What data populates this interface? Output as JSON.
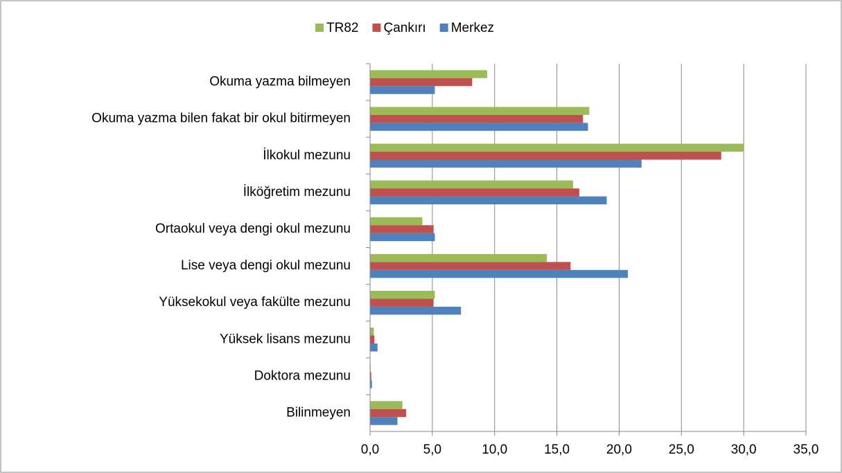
{
  "chart_data": {
    "type": "bar",
    "orientation": "horizontal",
    "categories": [
      "Okuma yazma bilmeyen",
      "Okuma yazma bilen fakat bir okul bitirmeyen",
      "İlkokul mezunu",
      "İlköğretim mezunu",
      "Ortaokul veya dengi okul mezunu",
      "Lise veya dengi okul mezunu",
      "Yüksekokul veya fakülte mezunu",
      "Yüksek lisans mezunu",
      "Doktora mezunu",
      "Bilinmeyen"
    ],
    "series": [
      {
        "name": "TR82",
        "color": "#9bbb59",
        "values": [
          9.4,
          17.6,
          30.0,
          16.3,
          4.2,
          14.2,
          5.2,
          0.3,
          0.05,
          2.6
        ]
      },
      {
        "name": "Çankırı",
        "color": "#c0504d",
        "values": [
          8.2,
          17.1,
          28.2,
          16.8,
          5.1,
          16.1,
          5.1,
          0.35,
          0.1,
          2.9
        ]
      },
      {
        "name": "Merkez",
        "color": "#4f81bd",
        "values": [
          5.2,
          17.5,
          21.8,
          19.0,
          5.2,
          20.7,
          7.3,
          0.6,
          0.15,
          2.2
        ]
      }
    ],
    "xlim": [
      0,
      35
    ],
    "xticks": [
      {
        "value": 0,
        "label": "0,0"
      },
      {
        "value": 5,
        "label": "5,0"
      },
      {
        "value": 10,
        "label": "10,0"
      },
      {
        "value": 15,
        "label": "15,0"
      },
      {
        "value": 20,
        "label": "20,0"
      },
      {
        "value": 25,
        "label": "25,0"
      },
      {
        "value": 30,
        "label": "30,0"
      },
      {
        "value": 35,
        "label": "35,0"
      }
    ],
    "grid": true,
    "legend": "top"
  }
}
